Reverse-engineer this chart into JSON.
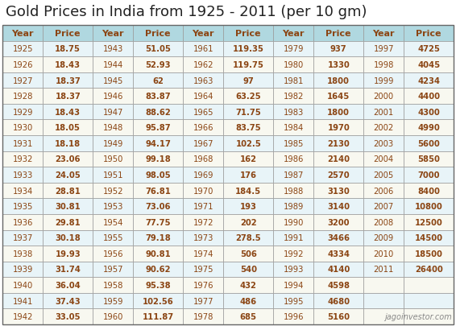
{
  "title": "Gold Prices in India from 1925 - 2011 (per 10 gm)",
  "watermark": "jagoinvestor.com",
  "background_color": "#ffffff",
  "header_bg": "#b0d8e0",
  "row_bg_odd": "#e8f4f8",
  "row_bg_even": "#f8f8f0",
  "cell_text_color": "#8B4513",
  "border_color": "#999999",
  "title_color": "#222222",
  "title_fontsize": 13,
  "header_fontsize": 8,
  "cell_fontsize": 7.2,
  "columns": [
    {
      "year": 1925,
      "price": "18.75"
    },
    {
      "year": 1926,
      "price": "18.43"
    },
    {
      "year": 1927,
      "price": "18.37"
    },
    {
      "year": 1928,
      "price": "18.37"
    },
    {
      "year": 1929,
      "price": "18.43"
    },
    {
      "year": 1930,
      "price": "18.05"
    },
    {
      "year": 1931,
      "price": "18.18"
    },
    {
      "year": 1932,
      "price": "23.06"
    },
    {
      "year": 1933,
      "price": "24.05"
    },
    {
      "year": 1934,
      "price": "28.81"
    },
    {
      "year": 1935,
      "price": "30.81"
    },
    {
      "year": 1936,
      "price": "29.81"
    },
    {
      "year": 1937,
      "price": "30.18"
    },
    {
      "year": 1938,
      "price": "19.93"
    },
    {
      "year": 1939,
      "price": "31.74"
    },
    {
      "year": 1940,
      "price": "36.04"
    },
    {
      "year": 1941,
      "price": "37.43"
    },
    {
      "year": 1942,
      "price": "33.05"
    },
    {
      "year": 1943,
      "price": "51.05"
    },
    {
      "year": 1944,
      "price": "52.93"
    },
    {
      "year": 1945,
      "price": "62"
    },
    {
      "year": 1946,
      "price": "83.87"
    },
    {
      "year": 1947,
      "price": "88.62"
    },
    {
      "year": 1948,
      "price": "95.87"
    },
    {
      "year": 1949,
      "price": "94.17"
    },
    {
      "year": 1950,
      "price": "99.18"
    },
    {
      "year": 1951,
      "price": "98.05"
    },
    {
      "year": 1952,
      "price": "76.81"
    },
    {
      "year": 1953,
      "price": "73.06"
    },
    {
      "year": 1954,
      "price": "77.75"
    },
    {
      "year": 1955,
      "price": "79.18"
    },
    {
      "year": 1956,
      "price": "90.81"
    },
    {
      "year": 1957,
      "price": "90.62"
    },
    {
      "year": 1958,
      "price": "95.38"
    },
    {
      "year": 1959,
      "price": "102.56"
    },
    {
      "year": 1960,
      "price": "111.87"
    },
    {
      "year": 1961,
      "price": "119.35"
    },
    {
      "year": 1962,
      "price": "119.75"
    },
    {
      "year": 1963,
      "price": "97"
    },
    {
      "year": 1964,
      "price": "63.25"
    },
    {
      "year": 1965,
      "price": "71.75"
    },
    {
      "year": 1966,
      "price": "83.75"
    },
    {
      "year": 1967,
      "price": "102.5"
    },
    {
      "year": 1968,
      "price": "162"
    },
    {
      "year": 1969,
      "price": "176"
    },
    {
      "year": 1970,
      "price": "184.5"
    },
    {
      "year": 1971,
      "price": "193"
    },
    {
      "year": 1972,
      "price": "202"
    },
    {
      "year": 1973,
      "price": "278.5"
    },
    {
      "year": 1974,
      "price": "506"
    },
    {
      "year": 1975,
      "price": "540"
    },
    {
      "year": 1976,
      "price": "432"
    },
    {
      "year": 1977,
      "price": "486"
    },
    {
      "year": 1978,
      "price": "685"
    },
    {
      "year": 1979,
      "price": "937"
    },
    {
      "year": 1980,
      "price": "1330"
    },
    {
      "year": 1981,
      "price": "1800"
    },
    {
      "year": 1982,
      "price": "1645"
    },
    {
      "year": 1983,
      "price": "1800"
    },
    {
      "year": 1984,
      "price": "1970"
    },
    {
      "year": 1985,
      "price": "2130"
    },
    {
      "year": 1986,
      "price": "2140"
    },
    {
      "year": 1987,
      "price": "2570"
    },
    {
      "year": 1988,
      "price": "3130"
    },
    {
      "year": 1989,
      "price": "3140"
    },
    {
      "year": 1990,
      "price": "3200"
    },
    {
      "year": 1991,
      "price": "3466"
    },
    {
      "year": 1992,
      "price": "4334"
    },
    {
      "year": 1993,
      "price": "4140"
    },
    {
      "year": 1994,
      "price": "4598"
    },
    {
      "year": 1995,
      "price": "4680"
    },
    {
      "year": 1996,
      "price": "5160"
    },
    {
      "year": 1997,
      "price": "4725"
    },
    {
      "year": 1998,
      "price": "4045"
    },
    {
      "year": 1999,
      "price": "4234"
    },
    {
      "year": 2000,
      "price": "4400"
    },
    {
      "year": 2001,
      "price": "4300"
    },
    {
      "year": 2002,
      "price": "4990"
    },
    {
      "year": 2003,
      "price": "5600"
    },
    {
      "year": 2004,
      "price": "5850"
    },
    {
      "year": 2005,
      "price": "7000"
    },
    {
      "year": 2006,
      "price": "8400"
    },
    {
      "year": 2007,
      "price": "10800"
    },
    {
      "year": 2008,
      "price": "12500"
    },
    {
      "year": 2009,
      "price": "14500"
    },
    {
      "year": 2010,
      "price": "18500"
    },
    {
      "year": 2011,
      "price": "26400"
    }
  ]
}
